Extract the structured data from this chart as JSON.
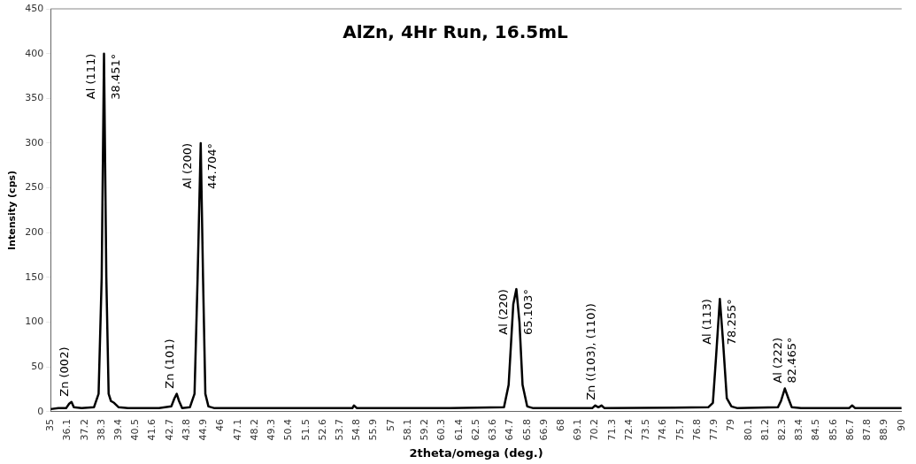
{
  "chart_data": {
    "type": "line",
    "title": "AlZn, 4Hr Run, 16.5mL",
    "xlabel": "2theta/omega (deg.)",
    "ylabel": "Intensity (cps)",
    "series": [
      {
        "color": "#000000",
        "x": [
          35,
          35.5,
          36,
          36.2,
          36.35,
          36.5,
          37,
          37.8,
          38.1,
          38.3,
          38.45,
          38.6,
          38.75,
          38.9,
          39.1,
          39.4,
          40,
          41,
          42,
          42.8,
          43,
          43.15,
          43.3,
          43.5,
          44,
          44.3,
          44.5,
          44.7,
          44.85,
          45,
          45.2,
          45.6,
          50,
          54.5,
          54.6,
          54.8,
          60,
          64.3,
          64.6,
          64.9,
          65.1,
          65.3,
          65.5,
          65.8,
          66.2,
          70,
          70.2,
          70.4,
          70.6,
          70.8,
          77.5,
          77.8,
          78,
          78.25,
          78.45,
          78.7,
          79,
          79.4,
          82,
          82.2,
          82.45,
          82.7,
          82.9,
          83.5,
          86.6,
          86.8,
          87,
          90
        ],
        "values": [
          3,
          4,
          4,
          9,
          11,
          5,
          4,
          5,
          20,
          150,
          400,
          150,
          20,
          12,
          10,
          5,
          4,
          4,
          4,
          6,
          15,
          20,
          12,
          4,
          5,
          20,
          150,
          300,
          150,
          20,
          6,
          4,
          4,
          4,
          7,
          4,
          4,
          5,
          30,
          120,
          137,
          100,
          30,
          6,
          4,
          4,
          7,
          5,
          7,
          4,
          5,
          10,
          60,
          126,
          80,
          15,
          6,
          4,
          5,
          12,
          26,
          14,
          5,
          4,
          4,
          7,
          4,
          4
        ]
      }
    ],
    "xlim": [
      35,
      90
    ],
    "xticks": [
      35,
      36.1,
      37.2,
      38.3,
      39.4,
      40.5,
      41.6,
      42.7,
      43.8,
      44.9,
      46,
      47.1,
      48.2,
      49.3,
      50.4,
      51.5,
      52.6,
      53.7,
      54.8,
      55.9,
      57,
      58.1,
      59.2,
      60.3,
      61.4,
      62.5,
      63.6,
      64.7,
      65.8,
      66.9,
      68,
      69.1,
      70.2,
      71.3,
      72.4,
      73.5,
      74.6,
      75.7,
      76.8,
      77.9,
      79,
      80.1,
      81.2,
      82.3,
      83.4,
      84.5,
      85.6,
      86.7,
      87.8,
      88.9,
      90
    ],
    "ylim": [
      0,
      450
    ],
    "yticks": [
      0,
      50,
      100,
      150,
      200,
      250,
      300,
      350,
      400,
      450
    ],
    "grid": false,
    "legend": false,
    "marker": "none",
    "line_style": "solid",
    "annotations": [
      {
        "text": "Zn (002)",
        "x": 36.35,
        "y": 11
      },
      {
        "text": "Al (111)",
        "x": 38.45,
        "y": 400
      },
      {
        "text": "38.451°",
        "x": 38.451,
        "y": 400
      },
      {
        "text": "Zn (101)",
        "x": 43.15,
        "y": 20
      },
      {
        "text": "Al (200)",
        "x": 44.7,
        "y": 300
      },
      {
        "text": "44.704°",
        "x": 44.704,
        "y": 300
      },
      {
        "text": "Al (220)",
        "x": 65.1,
        "y": 137
      },
      {
        "text": "65.103°",
        "x": 65.103,
        "y": 137
      },
      {
        "text": "Zn ((103), (110))",
        "x": 70.4,
        "y": 7
      },
      {
        "text": "Al (113)",
        "x": 78.25,
        "y": 126
      },
      {
        "text": "78.255°",
        "x": 78.255,
        "y": 126
      },
      {
        "text": "Al (222)",
        "x": 82.45,
        "y": 26
      },
      {
        "text": "82.465°",
        "x": 82.465,
        "y": 26
      }
    ]
  }
}
